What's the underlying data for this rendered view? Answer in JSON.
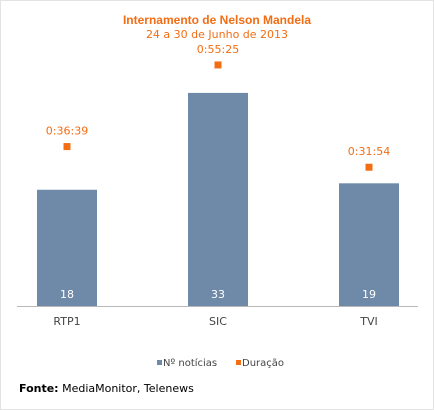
{
  "colors": {
    "bars": "#6f89a8",
    "duration": "#f26d13",
    "baseline": "#b8b8b8",
    "tick_label": "#444444",
    "bar_label": "#ffffff",
    "duration_label_bg": "#ffffff"
  },
  "chart_data": {
    "type": "bar",
    "title": "Internamento de Nelson Mandela",
    "subtitle": "24 a 30 de Junho de 2013",
    "categories": [
      "RTP1",
      "SIC",
      "TVI"
    ],
    "series": [
      {
        "name": "Nº notícias",
        "kind": "bar",
        "values": [
          18,
          33,
          19
        ],
        "labels": [
          "18",
          "33",
          "19"
        ]
      },
      {
        "name": "Duração",
        "kind": "marker",
        "values": [
          "0:36:39",
          "0:55:25",
          "0:31:54"
        ],
        "labels": [
          "0:36:39",
          "0:55:25",
          "0:31:54"
        ]
      }
    ],
    "ylim": [
      0,
      35
    ],
    "legend_position": "bottom",
    "grid": false
  },
  "source": {
    "label": "Fonte:",
    "text": " MediaMonitor, Telenews"
  }
}
